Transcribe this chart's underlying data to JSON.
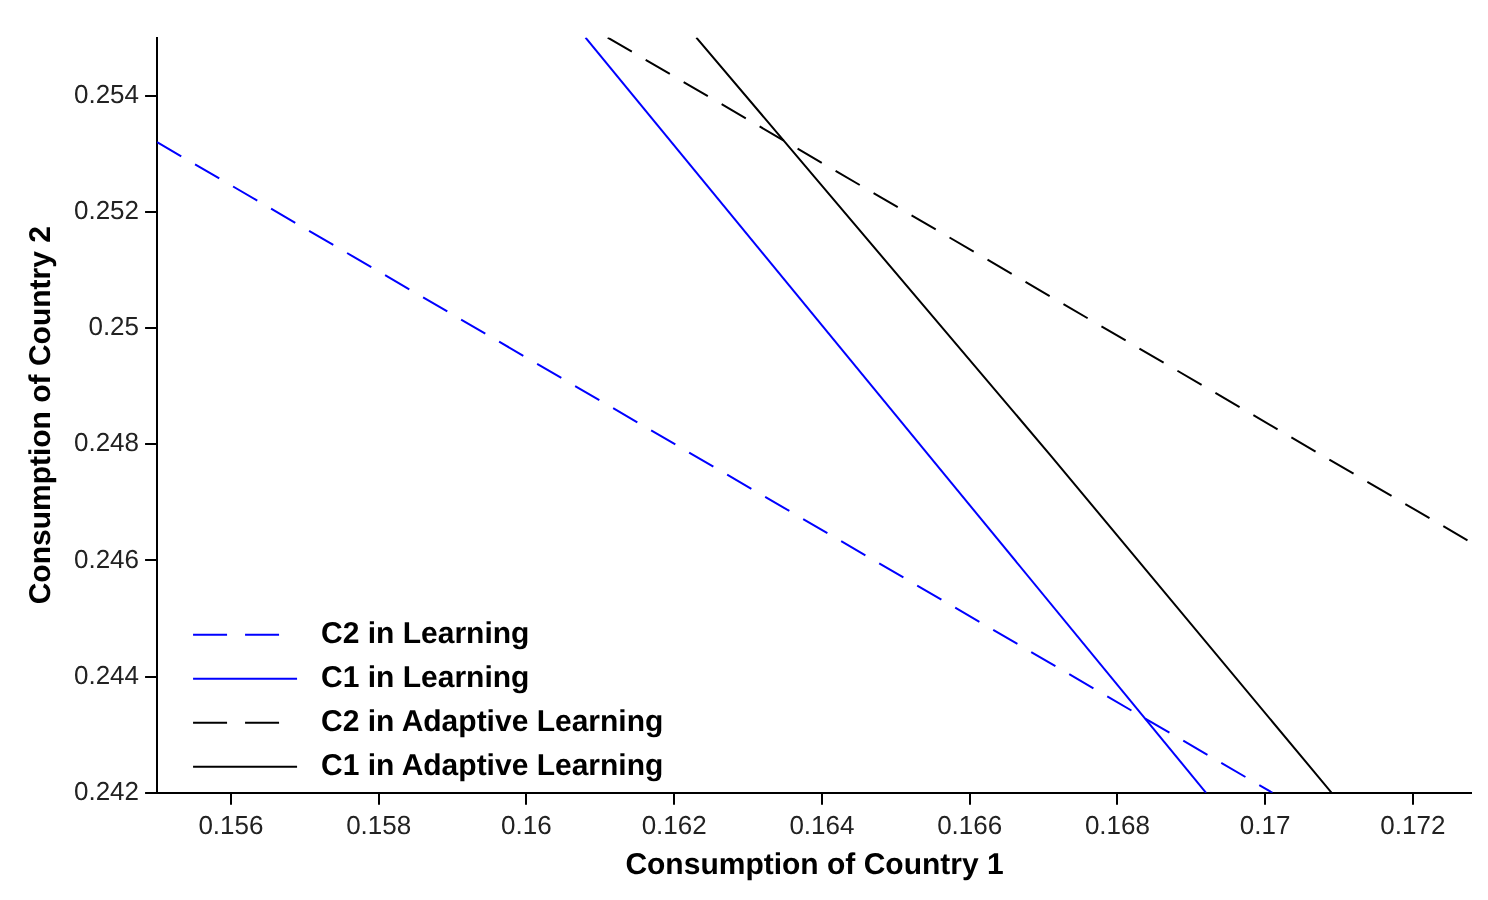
{
  "chart_data": {
    "type": "line",
    "xlabel": "Consumption of Country 1",
    "ylabel": "Consumption of Country 2",
    "xlim": [
      0.155,
      0.1728
    ],
    "xticks": [
      0.156,
      0.158,
      0.16,
      0.162,
      0.164,
      0.166,
      0.168,
      0.17,
      0.172
    ],
    "ylim": [
      0.242,
      0.255
    ],
    "yticks": [
      0.242,
      0.244,
      0.246,
      0.248,
      0.25,
      0.252,
      0.254
    ],
    "grid": false,
    "legend": "bottom left",
    "marker": "none",
    "series": [
      {
        "name": "C2 in Learning",
        "color": "#0000ff",
        "line_style": "dashed",
        "x": [
          0.155,
          0.1701
        ],
        "values": [
          0.2532,
          0.242
        ]
      },
      {
        "name": "C1 in Learning",
        "color": "#0000ff",
        "line_style": "solid",
        "x": [
          0.1608,
          0.1692
        ],
        "values": [
          0.255,
          0.242
        ]
      },
      {
        "name": "C2 in Adaptive Learning",
        "color": "#000000",
        "line_style": "dashed",
        "x": [
          0.1611,
          0.1728
        ],
        "values": [
          0.255,
          0.2463
        ]
      },
      {
        "name": "C1 in Adaptive Learning",
        "color": "#000000",
        "line_style": "solid",
        "x": [
          0.1623,
          0.1671,
          0.1709
        ],
        "values": [
          0.255,
          0.2478,
          0.242
        ]
      }
    ]
  }
}
